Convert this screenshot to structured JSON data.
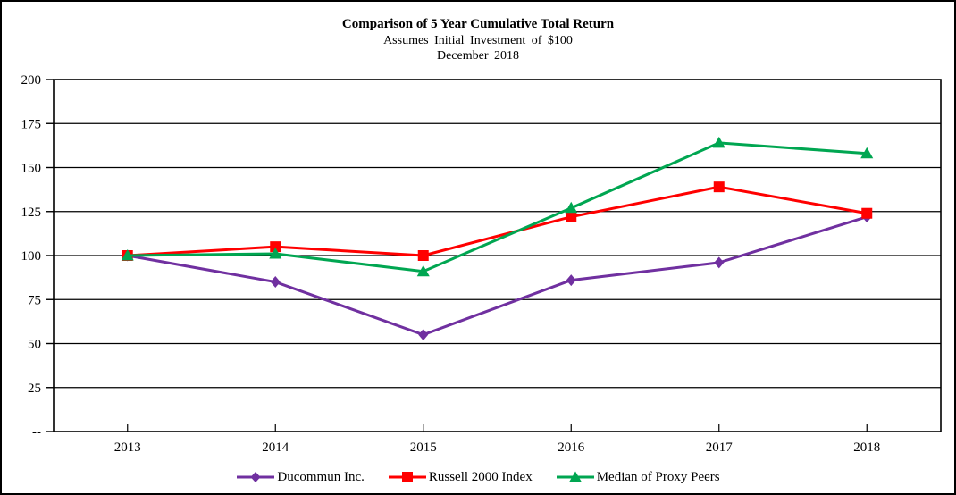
{
  "chart_data": {
    "type": "line",
    "title": "Comparison of 5 Year Cumulative Total Return",
    "subtitle": "Assumes Initial Investment of $100",
    "date": "December 2018",
    "categories": [
      "2013",
      "2014",
      "2015",
      "2016",
      "2017",
      "2018"
    ],
    "series": [
      {
        "name": "Ducommun Inc.",
        "color": "#7030A0",
        "marker": "diamond",
        "values": [
          100,
          85,
          55,
          86,
          96,
          122
        ]
      },
      {
        "name": "Russell 2000 Index",
        "color": "#FF0000",
        "marker": "square",
        "values": [
          100,
          105,
          100,
          122,
          139,
          124
        ]
      },
      {
        "name": "Median of Proxy Peers",
        "color": "#00A651",
        "marker": "triangle",
        "values": [
          100,
          101,
          91,
          127,
          164,
          158
        ]
      }
    ],
    "ylim": [
      0,
      200
    ],
    "y_ticks": [
      0,
      25,
      50,
      75,
      100,
      125,
      150,
      175,
      200
    ],
    "y_tick_labels": [
      "--",
      "25",
      "50",
      "75",
      "100",
      "125",
      "150",
      "175",
      "200"
    ],
    "grid": "horizontal",
    "legend_position": "bottom",
    "axis_color": "#000000",
    "background_color": "#FFFFFF"
  }
}
